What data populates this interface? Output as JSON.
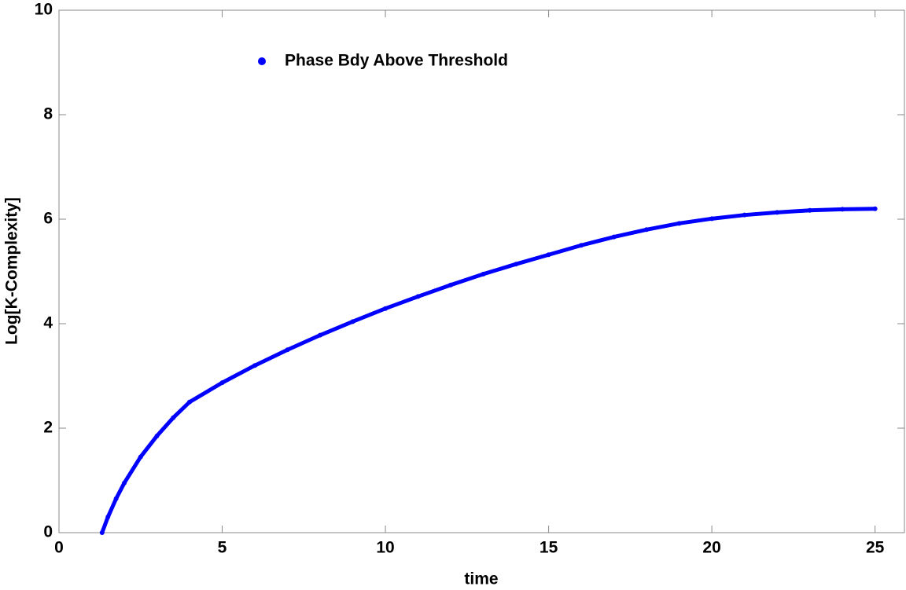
{
  "chart_data": {
    "type": "scatter",
    "title": null,
    "x_label": "time",
    "y_label": "Log[K-Complexity]",
    "series": [
      {
        "name": "Phase Bdy Above Threshold",
        "color": "#0000ff",
        "x": [
          1.32,
          1.5,
          1.75,
          2,
          2.5,
          3,
          3.5,
          4,
          5,
          6,
          7,
          8,
          9,
          10,
          11,
          12,
          13,
          14,
          15,
          16,
          17,
          18,
          19,
          20,
          21,
          22,
          23,
          24,
          25
        ],
        "values": [
          0,
          0.3,
          0.65,
          0.95,
          1.45,
          1.85,
          2.2,
          2.5,
          2.87,
          3.2,
          3.5,
          3.78,
          4.04,
          4.29,
          4.52,
          4.74,
          4.95,
          5.14,
          5.32,
          5.5,
          5.66,
          5.8,
          5.92,
          6.01,
          6.08,
          6.13,
          6.17,
          6.19,
          6.2
        ]
      }
    ],
    "xlim": [
      0,
      25.9
    ],
    "ylim": [
      0,
      10
    ],
    "xticks": [
      0,
      5,
      10,
      15,
      20,
      25
    ],
    "yticks": [
      0,
      2,
      4,
      6,
      8,
      10
    ],
    "legend": "top-left",
    "grid": false
  }
}
